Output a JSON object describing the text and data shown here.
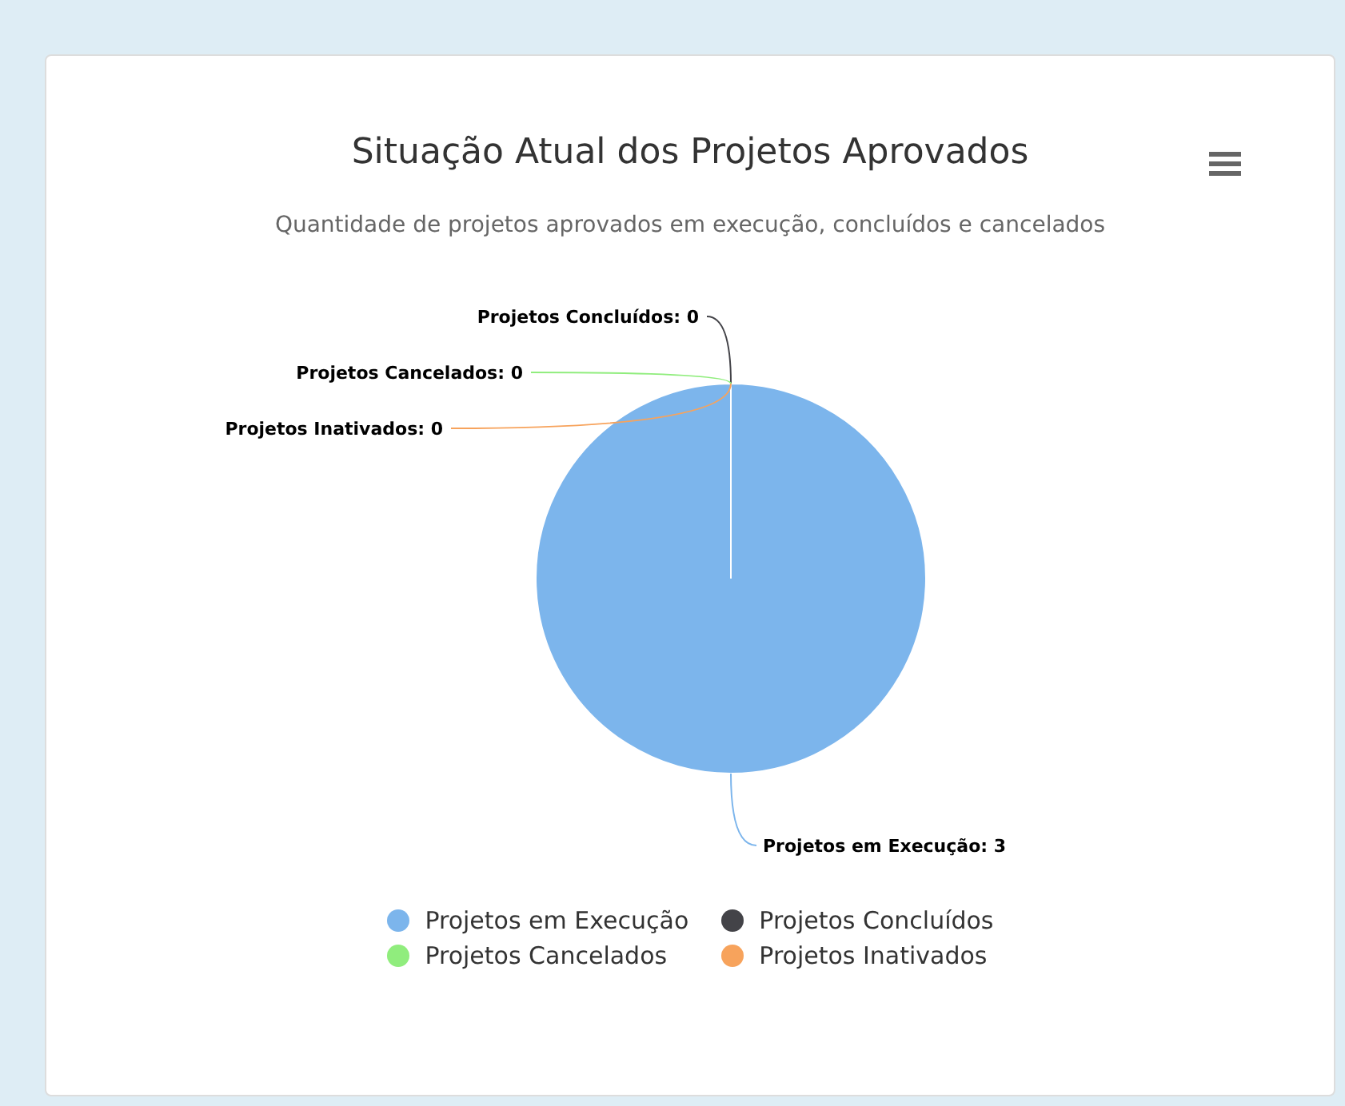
{
  "chart_data": {
    "type": "pie",
    "title": "Situação Atual dos Projetos Aprovados",
    "subtitle": "Quantidade de projetos aprovados em execução, concluídos e cancelados",
    "categories": [
      "Projetos em Execução",
      "Projetos Concluídos",
      "Projetos Cancelados",
      "Projetos Inativados"
    ],
    "values": [
      3,
      0,
      0,
      0
    ],
    "colors": [
      "#7cb5ec",
      "#434348",
      "#90ed7d",
      "#f7a35c"
    ],
    "value_labels": [
      "Projetos em Execução: 3",
      "Projetos Concluídos: 0",
      "Projetos Cancelados: 0",
      "Projetos Inativados: 0"
    ],
    "legend": "bottom"
  }
}
